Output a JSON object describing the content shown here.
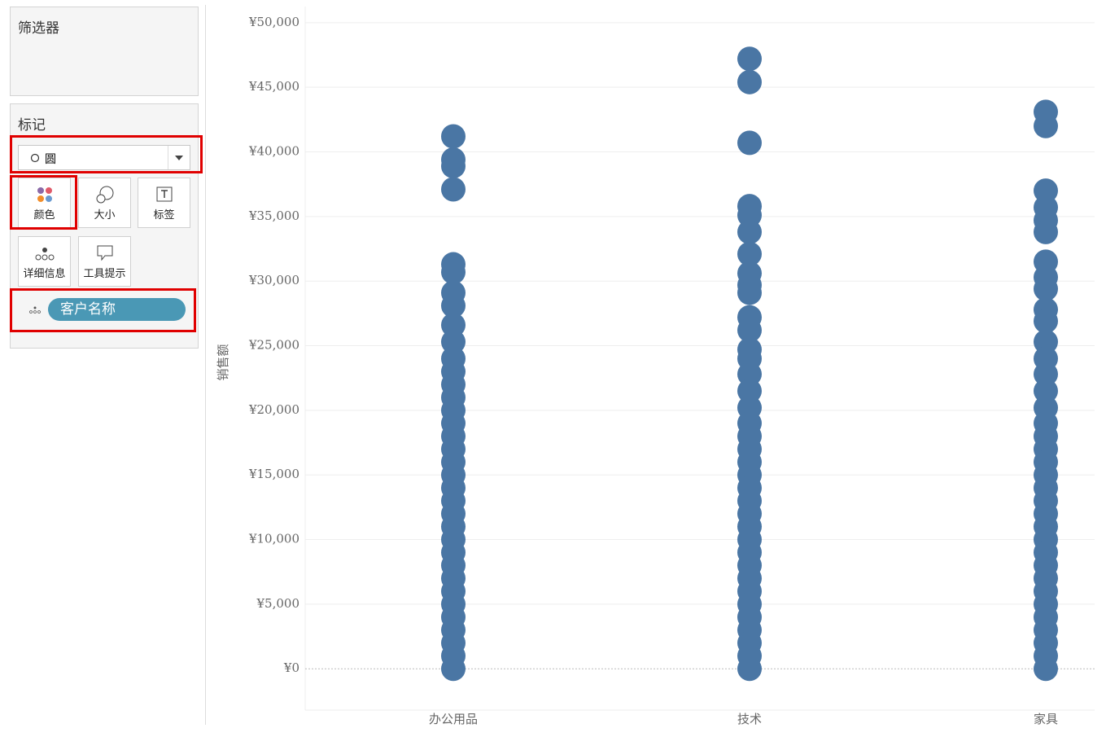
{
  "panel": {
    "filters_title": "筛选器",
    "marks_title": "标记",
    "mark_type": "圆",
    "buttons": [
      "颜色",
      "大小",
      "标签",
      "详细信息",
      "工具提示"
    ],
    "detail_field": "客户名称"
  },
  "chart_data": {
    "type": "strip",
    "ylabel": "销售额",
    "color": "#4a76a4",
    "grid": true,
    "categories": [
      "办公用品",
      "技术",
      "家具"
    ],
    "values": [
      [
        41200,
        39400,
        38900,
        37100,
        31300,
        30700,
        29100,
        28100,
        26600,
        25300,
        24000,
        23000,
        22000,
        21000,
        20000,
        19000,
        18000,
        17000,
        16000,
        15000,
        14000,
        13000,
        12000,
        11000,
        10000,
        9000,
        8000,
        7000,
        6000,
        5000,
        4000,
        3000,
        2000,
        1000,
        0
      ],
      [
        47200,
        45400,
        40700,
        35800,
        35100,
        33800,
        32100,
        30600,
        29700,
        29100,
        27200,
        26200,
        24700,
        24000,
        22800,
        21500,
        20200,
        19000,
        18000,
        17000,
        16000,
        15000,
        14000,
        13000,
        12000,
        11000,
        10000,
        9000,
        8000,
        7000,
        6000,
        5000,
        4000,
        3000,
        2000,
        1000,
        0
      ],
      [
        43100,
        42000,
        37000,
        35700,
        34700,
        33800,
        31500,
        30300,
        29400,
        27800,
        26900,
        25300,
        24000,
        22800,
        21500,
        20200,
        19000,
        18000,
        17000,
        16000,
        15000,
        14000,
        13000,
        12000,
        11000,
        10000,
        9000,
        8000,
        7000,
        6000,
        5000,
        4000,
        3000,
        2000,
        1000,
        0
      ]
    ],
    "ylim": [
      -3200,
      51250
    ],
    "yticks": [
      {
        "value": 0,
        "label": "¥0"
      },
      {
        "value": 5000,
        "label": "¥5,000"
      },
      {
        "value": 10000,
        "label": "¥10,000"
      },
      {
        "value": 15000,
        "label": "¥15,000"
      },
      {
        "value": 20000,
        "label": "¥20,000"
      },
      {
        "value": 25000,
        "label": "¥25,000"
      },
      {
        "value": 30000,
        "label": "¥30,000"
      },
      {
        "value": 35000,
        "label": "¥35,000"
      },
      {
        "value": 40000,
        "label": "¥40,000"
      },
      {
        "value": 45000,
        "label": "¥45,000"
      },
      {
        "value": 50000,
        "label": "¥50,000"
      }
    ]
  }
}
